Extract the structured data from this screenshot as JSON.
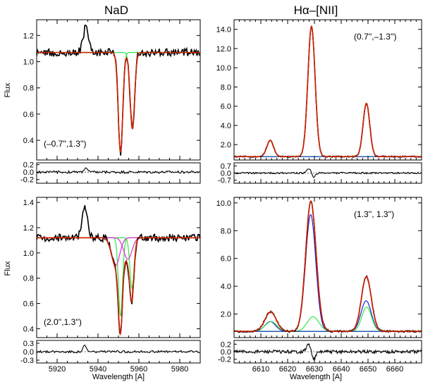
{
  "figure": {
    "column_titles": [
      "NaD",
      "Hα–[NII]"
    ],
    "xlabel": "Wavelength [A]",
    "ylabel": "Flux"
  },
  "colors": {
    "data": "#000000",
    "total_fit": "#d22000",
    "narrow": "#2fe84a",
    "broad_magenta": "#e02bd0",
    "broad_blue": "#1c22d8",
    "residual_zero": "#444444"
  },
  "chart_data": [
    {
      "id": "nad-top",
      "type": "line",
      "title": "NaD",
      "ylabel": "Flux",
      "annotation": "(–0.7'',1.3'')",
      "xlim": [
        5910,
        5990
      ],
      "ylim": [
        0.25,
        1.32
      ],
      "yticks": [
        0.4,
        0.6,
        0.8,
        1.0,
        1.2
      ],
      "ytick_labels": [
        "0.4",
        "0.6",
        "0.8",
        "1.0",
        "1.2"
      ],
      "continuum": 1.07,
      "components": [
        {
          "kind": "narrow",
          "center": 5951.0,
          "sigma": 1.1,
          "depth": 0.76
        },
        {
          "kind": "narrow",
          "center": 5956.8,
          "sigma": 1.1,
          "depth": 0.58
        }
      ],
      "observed_peak": {
        "x": 5934,
        "y": 1.26
      },
      "residual": {
        "ylim": [
          -0.3,
          0.25
        ],
        "yticks": [
          -0.2,
          0.0,
          0.2
        ],
        "ytick_labels": [
          "-0.2",
          "0.0",
          "0.2"
        ],
        "noise": 0.035,
        "features": [
          {
            "x": 5934,
            "y": 0.12
          }
        ]
      }
    },
    {
      "id": "ha-top",
      "type": "line",
      "title": "Hα–[NII]",
      "annotation": "(0.7'',–1.3'')",
      "xlim": [
        6600,
        6670
      ],
      "ylim": [
        0.4,
        15.0
      ],
      "yticks": [
        2.0,
        4.0,
        6.0,
        8.0,
        10.0,
        12.0,
        14.0
      ],
      "ytick_labels": [
        "2.0",
        "4.0",
        "6.0",
        "8.0",
        "10.0",
        "12.0",
        "14.0"
      ],
      "continuum": 0.75,
      "components": [
        {
          "kind": "narrow",
          "center": 6613.5,
          "sigma": 1.25,
          "amplitude": 1.7
        },
        {
          "kind": "narrow",
          "center": 6628.9,
          "sigma": 1.35,
          "amplitude": 13.55
        },
        {
          "kind": "narrow",
          "center": 6649.4,
          "sigma": 1.25,
          "amplitude": 5.55
        }
      ],
      "residual": {
        "ylim": [
          -1.0,
          1.0
        ],
        "yticks": [
          -0.7,
          0.0,
          0.7
        ],
        "ytick_labels": [
          "-0.7",
          "0.0",
          "0.7"
        ],
        "noise": 0.08,
        "features": [
          {
            "x": 6628.3,
            "y": 0.6
          },
          {
            "x": 6629.4,
            "y": -0.55
          }
        ]
      }
    },
    {
      "id": "nad-bottom",
      "type": "line",
      "xlabel": "Wavelength [A]",
      "ylabel": "Flux",
      "annotation": "(2.0'',1.3'')",
      "xlim": [
        5910,
        5990
      ],
      "ylim": [
        0.33,
        1.44
      ],
      "xticks": [
        5920,
        5940,
        5960,
        5980
      ],
      "xtick_labels": [
        "5920",
        "5940",
        "5960",
        "5980"
      ],
      "yticks": [
        0.4,
        0.6,
        0.8,
        1.0,
        1.2,
        1.4
      ],
      "ytick_labels": [
        "0.4",
        "0.6",
        "0.8",
        "1.0",
        "1.2",
        "1.4"
      ],
      "continuum": 1.12,
      "components": [
        {
          "kind": "narrow",
          "center": 5951.0,
          "sigma": 1.0,
          "depth": 0.62
        },
        {
          "kind": "narrow",
          "center": 5956.6,
          "sigma": 1.0,
          "depth": 0.4
        },
        {
          "kind": "broad",
          "center": 5948.6,
          "sigma": 2.0,
          "depth": 0.22
        },
        {
          "kind": "broad",
          "center": 5954.6,
          "sigma": 2.0,
          "depth": 0.17
        }
      ],
      "observed_peak": {
        "x": 5933.5,
        "y": 1.37
      },
      "residual": {
        "ylim": [
          -0.4,
          0.4
        ],
        "yticks": [
          -0.3,
          0.0,
          0.3
        ],
        "ytick_labels": [
          "-0.3",
          "0.0",
          "0.3"
        ],
        "noise": 0.04,
        "features": [
          {
            "x": 5933.5,
            "y": 0.22
          }
        ]
      }
    },
    {
      "id": "ha-bottom",
      "type": "line",
      "xlabel": "Wavelength [A]",
      "annotation": "(1.3'', 1.3'')",
      "xlim": [
        6600,
        6670
      ],
      "ylim": [
        0.3,
        10.4
      ],
      "xticks": [
        6610,
        6620,
        6630,
        6640,
        6650,
        6660
      ],
      "xtick_labels": [
        "6610",
        "6620",
        "6630",
        "6640",
        "6650",
        "6660"
      ],
      "yticks": [
        2.0,
        4.0,
        6.0,
        8.0,
        10.0
      ],
      "ytick_labels": [
        "2.0",
        "4.0",
        "6.0",
        "8.0",
        "10.0"
      ],
      "continuum": 0.75,
      "components": [
        {
          "kind": "broad",
          "center": 6613.5,
          "sigma": 2.0,
          "amplitude": 0.7
        },
        {
          "kind": "broad",
          "center": 6628.6,
          "sigma": 1.9,
          "amplitude": 8.4
        },
        {
          "kind": "broad",
          "center": 6649.3,
          "sigma": 1.9,
          "amplitude": 2.2
        },
        {
          "kind": "narrow",
          "center": 6613.8,
          "sigma": 2.2,
          "amplitude": 0.7
        },
        {
          "kind": "narrow",
          "center": 6629.5,
          "sigma": 2.2,
          "amplitude": 1.05
        },
        {
          "kind": "narrow",
          "center": 6649.5,
          "sigma": 1.8,
          "amplitude": 1.75
        }
      ],
      "residual": {
        "ylim": [
          -0.3,
          0.3
        ],
        "yticks": [
          -0.2,
          0.0,
          0.2
        ],
        "ytick_labels": [
          "-0.2",
          "0.0",
          "0.2"
        ],
        "noise": 0.045,
        "features": [
          {
            "x": 6627.8,
            "y": 0.2
          },
          {
            "x": 6629.8,
            "y": -0.18
          }
        ]
      }
    }
  ]
}
